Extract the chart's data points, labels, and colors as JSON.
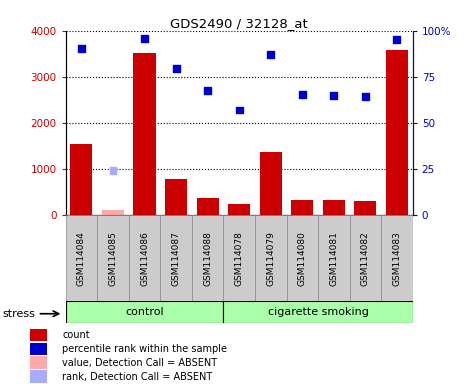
{
  "title": "GDS2490 / 32128_at",
  "samples": [
    "GSM114084",
    "GSM114085",
    "GSM114086",
    "GSM114087",
    "GSM114088",
    "GSM114078",
    "GSM114079",
    "GSM114080",
    "GSM114081",
    "GSM114082",
    "GSM114083"
  ],
  "counts": [
    1550,
    100,
    3520,
    780,
    360,
    230,
    1360,
    330,
    320,
    300,
    3580
  ],
  "percentile_ranks": [
    3620,
    960,
    3830,
    3180,
    2700,
    2280,
    3480,
    2610,
    2590,
    2580,
    3800
  ],
  "absent_value_idx": [
    1
  ],
  "absent_rank_idx": [
    1
  ],
  "control_count": 5,
  "smoking_count": 6,
  "bar_color": "#cc0000",
  "dot_color": "#0000cc",
  "absent_dot_color": "#aaaaff",
  "absent_bar_color": "#ffaaaa",
  "left_ylim": [
    0,
    4000
  ],
  "right_ylim": [
    0,
    100
  ],
  "right_yticks": [
    0,
    25,
    50,
    75,
    100
  ],
  "right_yticklabels": [
    "0",
    "25",
    "50",
    "75",
    "100%"
  ],
  "left_yticks": [
    0,
    1000,
    2000,
    3000,
    4000
  ],
  "control_label": "control",
  "smoking_label": "cigarette smoking",
  "stress_label": "stress",
  "group_color": "#aaffaa",
  "tick_label_bg": "#cccccc",
  "legend_items": [
    "count",
    "percentile rank within the sample",
    "value, Detection Call = ABSENT",
    "rank, Detection Call = ABSENT"
  ],
  "legend_colors": [
    "#cc0000",
    "#0000cc",
    "#ffaaaa",
    "#aaaaff"
  ]
}
